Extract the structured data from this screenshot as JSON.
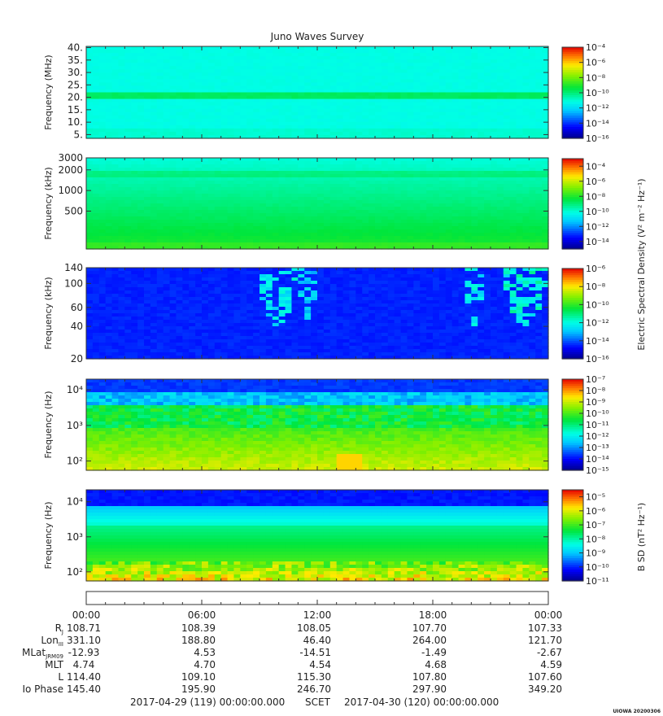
{
  "title": "Juno Waves Survey",
  "footer": {
    "start": "2017-04-29 (119) 00:00:00.000",
    "scet": "SCET",
    "end": "2017-04-30 (120) 00:00:00.000",
    "credit": "UIOWA 20200306"
  },
  "colorbar_titles": {
    "electric": "Electric Spectral Density (V² m⁻² Hz⁻¹)",
    "magnetic": "B SD (nT² Hz⁻¹)"
  },
  "chart_data": [
    {
      "type": "heatmap",
      "ylabel": "Frequency (MHz)",
      "ylim": [
        3.5,
        40.5
      ],
      "yticks": [
        {
          "v": 5,
          "label": "5."
        },
        {
          "v": 10,
          "label": "10."
        },
        {
          "v": 15,
          "label": "15."
        },
        {
          "v": 20,
          "label": "20."
        },
        {
          "v": 25,
          "label": "25."
        },
        {
          "v": 30,
          "label": "30."
        },
        {
          "v": 35,
          "label": "35."
        },
        {
          "v": 40,
          "label": "40."
        }
      ],
      "colorbar": {
        "exp_range": [
          -16,
          -4
        ],
        "labels": [
          -4,
          -6,
          -8,
          -10,
          -12,
          -14,
          -16
        ]
      },
      "features": "uniform background near 1e-13; narrow enhanced band near 21 MHz"
    },
    {
      "type": "heatmap",
      "ylabel": "Frequency (kHz)",
      "scale": "log",
      "ylim": [
        140,
        3000
      ],
      "yticks": [
        {
          "v": 500,
          "label": "500"
        },
        {
          "v": 1000,
          "label": "1000"
        },
        {
          "v": 2000,
          "label": "2000"
        },
        {
          "v": 3000,
          "label": "3000"
        }
      ],
      "colorbar": {
        "exp_range": [
          -15,
          -3
        ],
        "labels": [
          -4,
          -6,
          -8,
          -10,
          -12,
          -14
        ]
      },
      "features": "smooth gradient, higher intensity toward lower frequencies; faint band near 1700 kHz"
    },
    {
      "type": "heatmap",
      "ylabel": "Frequency (kHz)",
      "scale": "log",
      "ylim": [
        20,
        140
      ],
      "yticks": [
        {
          "v": 20,
          "label": "20"
        },
        {
          "v": 40,
          "label": "40"
        },
        {
          "v": 60,
          "label": "60"
        },
        {
          "v": 100,
          "label": "100"
        },
        {
          "v": 140,
          "label": "140"
        }
      ],
      "colorbar": {
        "exp_range": [
          -16,
          -6
        ],
        "labels": [
          -6,
          -8,
          -10,
          -12,
          -14,
          -16
        ]
      },
      "features": "background near 1e-14.5; emission arcs near 09:00-11:00 and 20:00-24:00"
    },
    {
      "type": "heatmap",
      "ylabel": "Frequency (Hz)",
      "scale": "log",
      "ylim": [
        55,
        20000
      ],
      "yticks": [
        {
          "v": 100,
          "label": "10²"
        },
        {
          "v": 1000,
          "label": "10³"
        },
        {
          "v": 10000,
          "label": "10⁴"
        }
      ],
      "colorbar": {
        "exp_range": [
          -15,
          -7
        ],
        "labels": [
          -7,
          -8,
          -9,
          -10,
          -11,
          -12,
          -13,
          -14,
          -15
        ]
      },
      "features": "intense emission below ~3 kHz, hiss band up to ~4 kHz, enhancement 14:50-16:00 at low frequency"
    },
    {
      "type": "heatmap",
      "ylabel": "Frequency (Hz)",
      "scale": "log",
      "ylim": [
        55,
        22000
      ],
      "yticks": [
        {
          "v": 100,
          "label": "10²"
        },
        {
          "v": 1000,
          "label": "10³"
        },
        {
          "v": 10000,
          "label": "10⁴"
        }
      ],
      "colorbar": {
        "exp_range": [
          -11,
          -4.5
        ],
        "labels": [
          -5,
          -6,
          -7,
          -8,
          -9,
          -10,
          -11
        ]
      },
      "features": "intensity rising toward low frequency; spiky bursts near 60-90 Hz"
    }
  ],
  "ephemeris": {
    "time_labels": [
      "00:00",
      "06:00",
      "12:00",
      "18:00",
      "00:00"
    ],
    "rows": [
      {
        "name": "R",
        "sub": "J",
        "values": [
          "108.71",
          "108.39",
          "108.05",
          "107.70",
          "107.33"
        ]
      },
      {
        "name": "Lon",
        "sub": "III",
        "values": [
          "331.10",
          "188.80",
          "46.40",
          "264.00",
          "121.70"
        ]
      },
      {
        "name": "MLat",
        "sub": "JRM09",
        "values": [
          "-12.93",
          "4.53",
          "-14.51",
          "-1.49",
          "-2.67"
        ]
      },
      {
        "name": "MLT",
        "sub": "",
        "values": [
          "4.74",
          "4.70",
          "4.54",
          "4.68",
          "4.59"
        ]
      },
      {
        "name": "L",
        "sub": "",
        "values": [
          "114.40",
          "109.10",
          "115.30",
          "107.80",
          "107.60"
        ]
      },
      {
        "name": "Io Phase",
        "sub": "",
        "values": [
          "145.40",
          "195.90",
          "246.70",
          "297.90",
          "349.20"
        ]
      }
    ]
  }
}
